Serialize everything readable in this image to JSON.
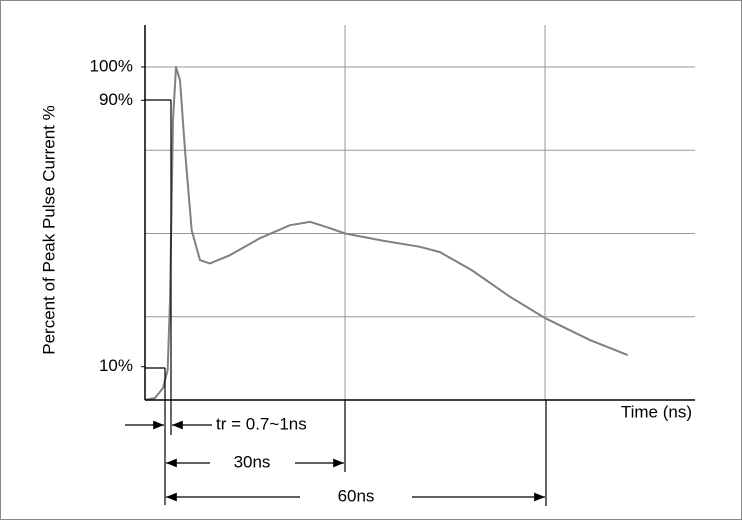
{
  "chart_data": {
    "type": "line",
    "y_label": "Percent of Peak Pulse Current %",
    "x_label": "Time (ns)",
    "annotations": [
      "tr = 0.7~1ns",
      "30ns",
      "60ns"
    ],
    "xlim": [
      0,
      82.5
    ],
    "ylim": [
      0,
      100
    ],
    "yticks": [
      {
        "value": 10,
        "label": "10%"
      },
      {
        "value": 90,
        "label": "90%"
      },
      {
        "value": 100,
        "label": "100%"
      }
    ],
    "y_grid": [
      25,
      50,
      75,
      100
    ],
    "x_grid": [
      30,
      60
    ],
    "series": [
      {
        "color": "#808080",
        "x": [
          0,
          1.5,
          2.7,
          3.4,
          3.75,
          4.2,
          4.65,
          5.25,
          6,
          7,
          8.25,
          9.75,
          12.75,
          17.25,
          21.75,
          24.75,
          27.75,
          30,
          35.25,
          41.25,
          44.25,
          49,
          54.75,
          60,
          66.75,
          72.4
        ],
        "values": [
          0,
          0.6,
          3.6,
          9,
          30,
          84,
          100,
          96,
          75,
          51,
          42,
          41,
          43.5,
          48.6,
          52.5,
          53.5,
          51.6,
          50,
          48,
          46,
          44.4,
          39,
          31,
          24.6,
          18,
          13.5
        ]
      }
    ]
  }
}
